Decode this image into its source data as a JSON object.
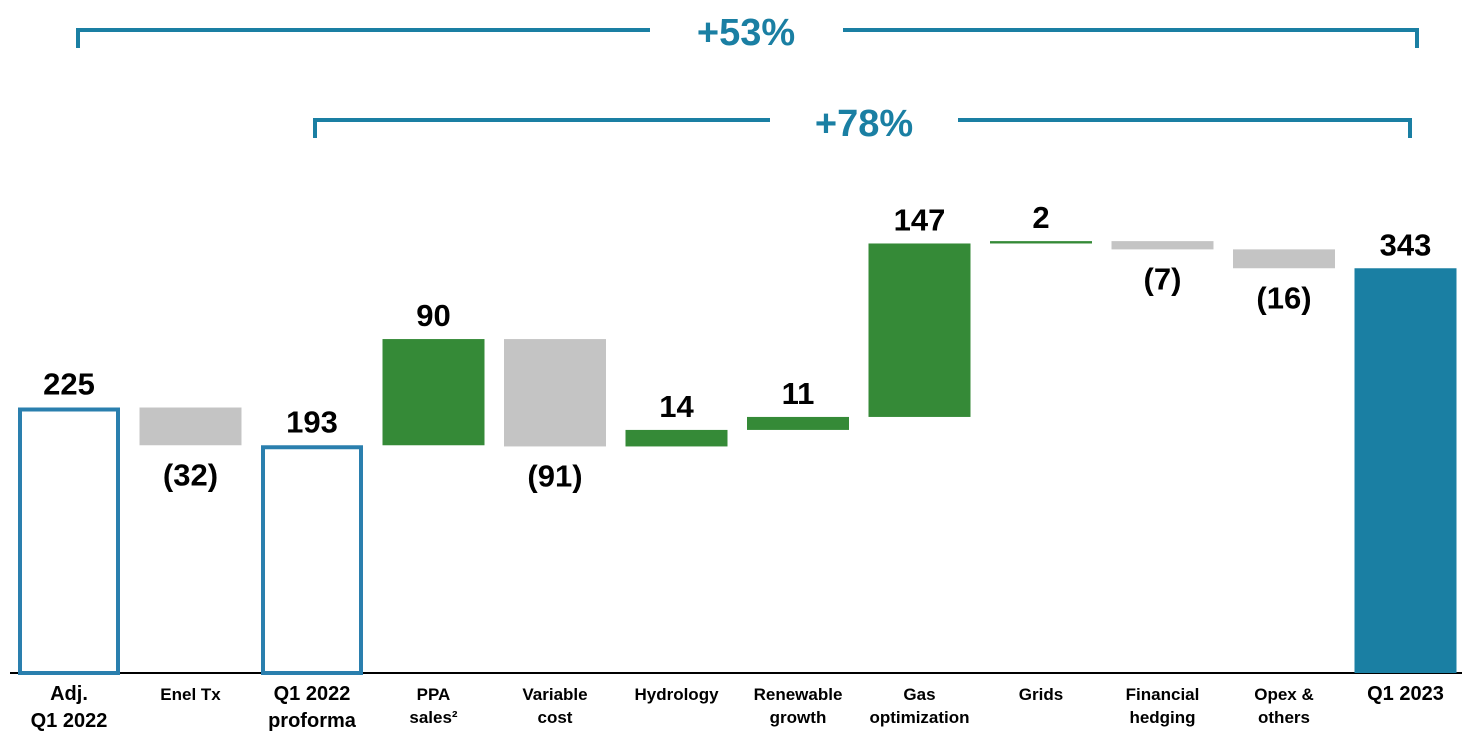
{
  "chart_data": {
    "type": "waterfall",
    "categories": [
      "Adj.\nQ1 2022",
      "Enel Tx",
      "Q1 2022\nproforma",
      "PPA\nsales²",
      "Variable\ncost",
      "Hydrology",
      "Renewable\ngrowth",
      "Gas\noptimization",
      "Grids",
      "Financial\nhedging",
      "Opex &\nothers",
      "Q1 2023"
    ],
    "values": [
      225,
      -32,
      193,
      90,
      -91,
      14,
      11,
      147,
      2,
      -7,
      -16,
      343
    ],
    "value_labels": [
      "225",
      "(32)",
      "193",
      "90",
      "(91)",
      "14",
      "11",
      "147",
      "2",
      "(7)",
      "(16)",
      "343"
    ],
    "measures": [
      "absolute",
      "relative",
      "absolute",
      "relative",
      "relative",
      "relative",
      "relative",
      "relative",
      "relative",
      "relative",
      "relative",
      "absolute"
    ],
    "outlined": [
      true,
      false,
      true,
      false,
      false,
      false,
      false,
      false,
      false,
      false,
      false,
      false
    ],
    "colors": [
      "#2a7fae",
      "#c4c4c4",
      "#2a7fae",
      "#358a37",
      "#c4c4c4",
      "#358a37",
      "#358a37",
      "#358a37",
      "#358a37",
      "#c4c4c4",
      "#c4c4c4",
      "#1a7fa3"
    ],
    "annotations": [
      "+53%",
      "+78%"
    ],
    "ylim": [
      0,
      400
    ]
  }
}
